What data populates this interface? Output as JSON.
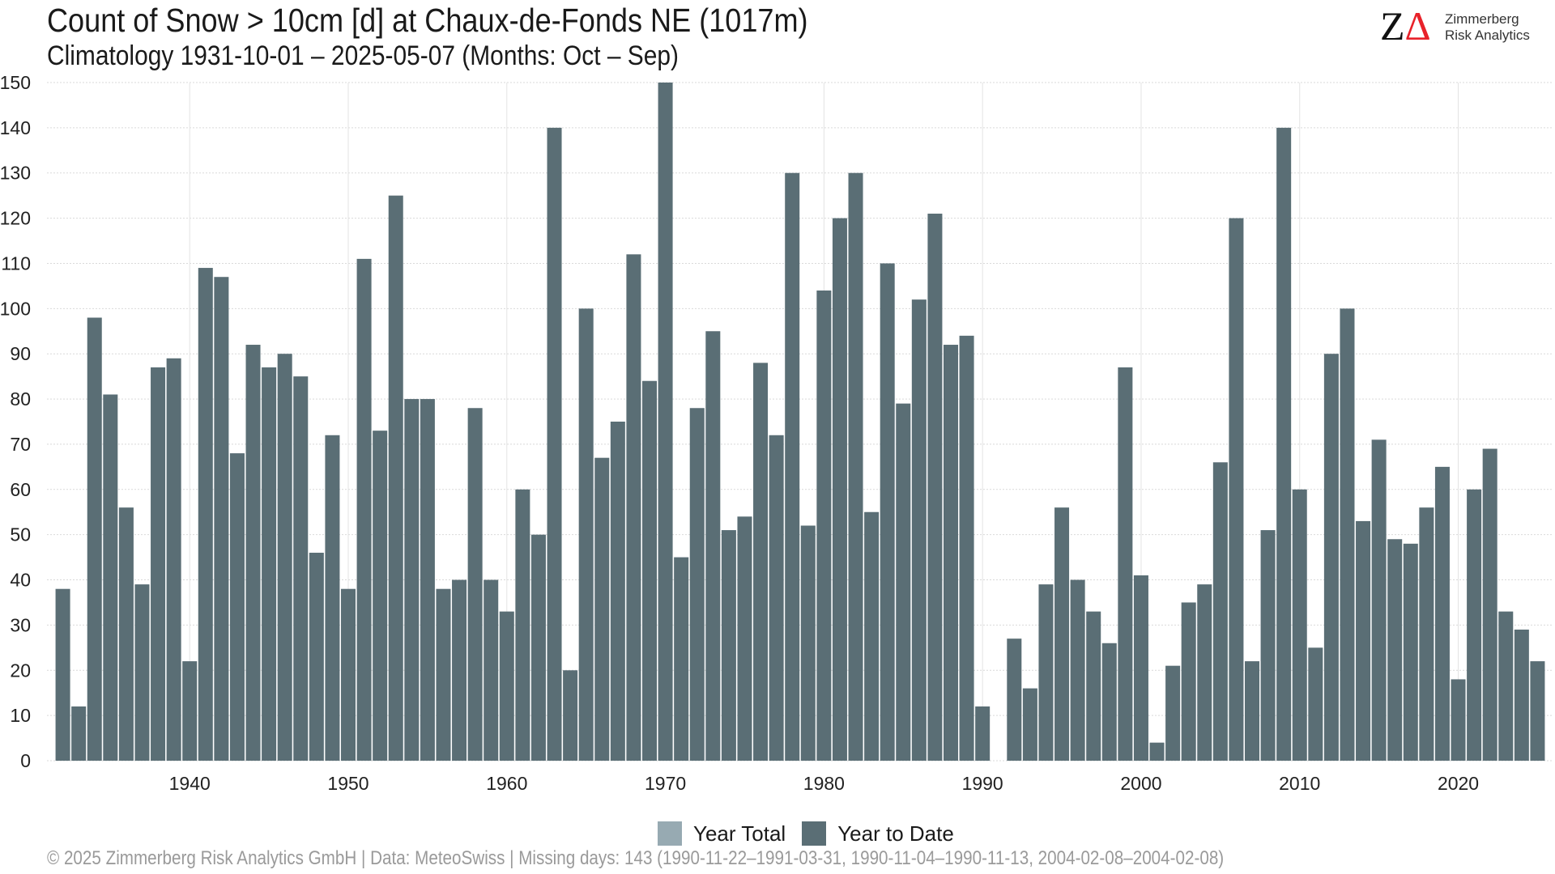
{
  "header": {
    "title": "Count of Snow > 10cm [d] at Chaux-de-Fonds  NE (1017m)",
    "subtitle": "Climatology 1931-10-01 – 2025-05-07 (Months: Oct – Sep)"
  },
  "logo": {
    "line1": "Zimmerberg",
    "line2": "Risk Analytics",
    "accent_color": "#e8222a"
  },
  "footer": {
    "text": "©  2025 Zimmerberg Risk Analytics GmbH | Data: MeteoSwiss | Missing days: 143 (1990-11-22–1991-03-31, 1990-11-04–1990-11-13, 2004-02-08–2004-02-08)"
  },
  "chart_data": {
    "type": "bar",
    "title": "Count of Snow > 10cm [d] at Chaux-de-Fonds  NE (1017m)",
    "subtitle": "Climatology 1931-10-01 – 2025-05-07 (Months: Oct – Sep)",
    "xlabel": "",
    "ylabel": "",
    "ylim": [
      0,
      150
    ],
    "y_ticks": [
      0,
      10,
      20,
      30,
      40,
      50,
      60,
      70,
      80,
      90,
      100,
      110,
      120,
      130,
      140,
      150
    ],
    "x_ticks": [
      1940,
      1950,
      1960,
      1970,
      1980,
      1990,
      2000,
      2010,
      2020
    ],
    "xlim": [
      1931,
      2026
    ],
    "grid": true,
    "legend_position": "bottom",
    "legend": [
      {
        "name": "Year Total",
        "color": "#97aab2"
      },
      {
        "name": "Year to Date",
        "color": "#5a6e75"
      }
    ],
    "years": [
      1932,
      1933,
      1934,
      1935,
      1936,
      1937,
      1938,
      1939,
      1940,
      1941,
      1942,
      1943,
      1944,
      1945,
      1946,
      1947,
      1948,
      1949,
      1950,
      1951,
      1952,
      1953,
      1954,
      1955,
      1956,
      1957,
      1958,
      1959,
      1960,
      1961,
      1962,
      1963,
      1964,
      1965,
      1966,
      1967,
      1968,
      1969,
      1970,
      1971,
      1972,
      1973,
      1974,
      1975,
      1976,
      1977,
      1978,
      1979,
      1980,
      1981,
      1982,
      1983,
      1984,
      1985,
      1986,
      1987,
      1988,
      1989,
      1990,
      1991,
      1992,
      1993,
      1994,
      1995,
      1996,
      1997,
      1998,
      1999,
      2000,
      2001,
      2002,
      2003,
      2004,
      2005,
      2006,
      2007,
      2008,
      2009,
      2010,
      2011,
      2012,
      2013,
      2014,
      2015,
      2016,
      2017,
      2018,
      2019,
      2020,
      2021,
      2022,
      2023,
      2024,
      2025
    ],
    "series": [
      {
        "name": "Year to Date",
        "color": "#5a6e75",
        "values": [
          38,
          12,
          98,
          81,
          56,
          39,
          87,
          89,
          22,
          109,
          107,
          68,
          92,
          87,
          90,
          85,
          46,
          72,
          38,
          111,
          73,
          125,
          80,
          80,
          38,
          40,
          78,
          40,
          33,
          60,
          50,
          140,
          20,
          100,
          67,
          75,
          112,
          84,
          150,
          45,
          78,
          95,
          51,
          54,
          88,
          72,
          130,
          52,
          104,
          120,
          130,
          55,
          110,
          79,
          102,
          121,
          92,
          94,
          12,
          0,
          27,
          16,
          39,
          56,
          40,
          33,
          26,
          87,
          41,
          4,
          21,
          35,
          39,
          66,
          120,
          22,
          51,
          140,
          60,
          25,
          90,
          100,
          53,
          71,
          49,
          48,
          56,
          65,
          18,
          60,
          69,
          33,
          29,
          22
        ]
      }
    ]
  }
}
